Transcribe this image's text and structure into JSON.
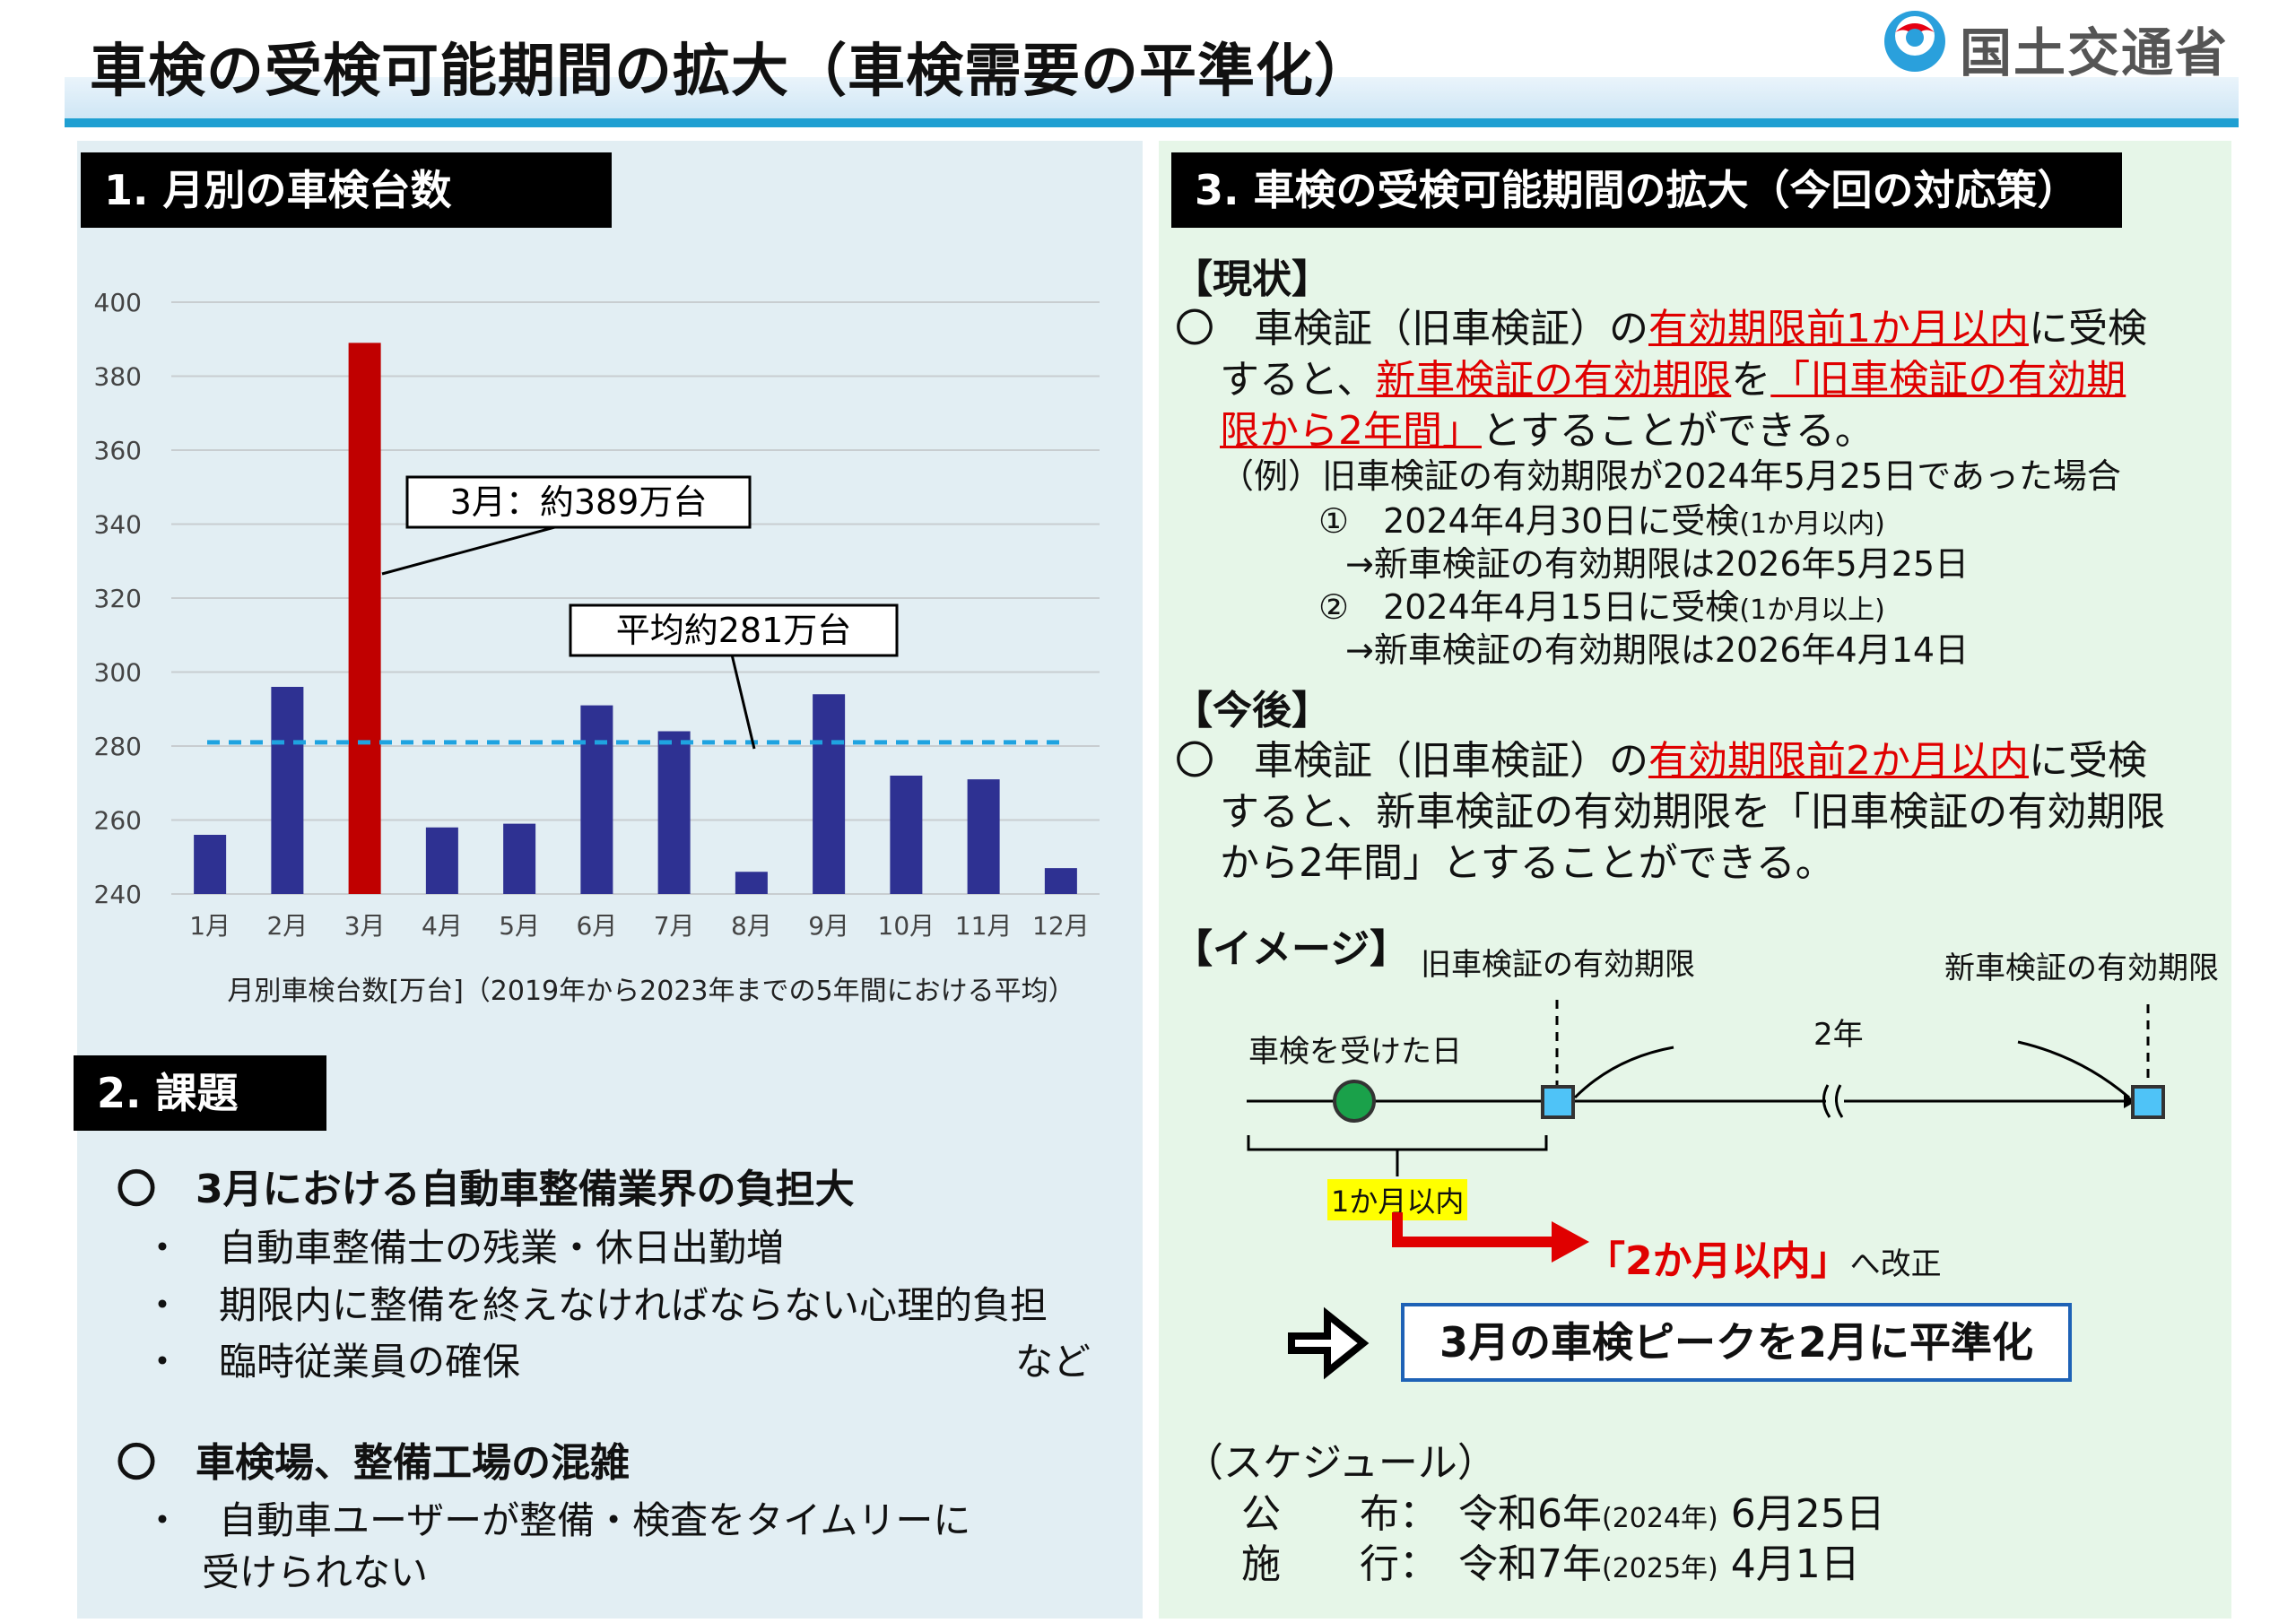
{
  "title": "車検の受検可能期間の拡大（車検需要の平準化）",
  "logo": {
    "text": "国土交通省",
    "icon": "mlit-logo-icon"
  },
  "section1": {
    "heading": "1. 月別の車検台数",
    "chart_data": {
      "type": "bar",
      "categories": [
        "1月",
        "2月",
        "3月",
        "4月",
        "5月",
        "6月",
        "7月",
        "8月",
        "9月",
        "10月",
        "11月",
        "12月"
      ],
      "values": [
        256,
        296,
        389,
        258,
        259,
        291,
        284,
        246,
        294,
        272,
        271,
        247
      ],
      "highlight_index": 2,
      "highlight_color": "#c00000",
      "bar_color": "#2e3192",
      "average_line": 281,
      "average_color": "#1fa3e0",
      "ylim": [
        240,
        400
      ],
      "yticks": [
        240,
        260,
        280,
        300,
        320,
        340,
        360,
        380,
        400
      ],
      "grid": true,
      "caption": "月別車検台数[万台]（2019年から2023年までの5年間における平均）",
      "annotations": [
        {
          "text": "3月：約389万台"
        },
        {
          "text": "平均約281万台"
        }
      ]
    }
  },
  "section2": {
    "heading": "2. 課題",
    "groups": [
      {
        "title": "〇　3月における自動車整備業界の負担大",
        "items": [
          "・　自動車整備士の残業・休日出勤増",
          "・　期限内に整備を終えなければならない心理的負担",
          "・　臨時従業員の確保"
        ],
        "etc": "など"
      },
      {
        "title": "〇　車検場、整備工場の混雑",
        "items": [
          "・　自動車ユーザーが整備・検査をタイムリーに",
          "受けられない"
        ]
      }
    ]
  },
  "section3": {
    "heading": "3. 車検の受検可能期間の拡大（今回の対応策）",
    "current": {
      "label": "【現状】",
      "line1_a": "〇　車検証（旧車検証）の",
      "line1_red": "有効期限前1か月以内",
      "line1_b": "に受検",
      "line2_a": "すると、",
      "line2_red1": "新車検証の有効期限",
      "line2_b": "を",
      "line2_red2": "「旧車検証の有効期",
      "line3_red": "限から2年間」",
      "line3_b": "とすることができる。",
      "example": "（例）旧車検証の有効期限が2024年5月25日であった場合",
      "ex1_a": "①　2024年4月30日に受検",
      "ex1_small": "(1か月以内)",
      "ex1_result": "→新車検証の有効期限は2026年5月25日",
      "ex2_a": "②　2024年4月15日に受検",
      "ex2_small": "(1か月以上)",
      "ex2_result": "→新車検証の有効期限は2026年4月14日"
    },
    "future": {
      "label": "【今後】",
      "line1_a": "〇　車検証（旧車検証）の",
      "line1_red": "有効期限前2か月以内",
      "line1_b": "に受検",
      "line2": "すると、新車検証の有効期限を「旧車検証の有効期限",
      "line3": "から2年間」とすることができる。"
    },
    "image": {
      "label": "【イメージ】",
      "old_expiry": "旧車検証の有効期限",
      "new_expiry": "新車検証の有効期限",
      "inspection_day": "車検を受けた日",
      "two_years": "2年",
      "within_1m": "1か月以内",
      "revised_red": "「2か月以内」",
      "revised_suffix": "へ改正",
      "result": "3月の車検ピークを2月に平準化"
    },
    "schedule": {
      "label": "（スケジュール）",
      "rows": [
        {
          "key": "公　　布：",
          "a": "令和6年",
          "small": "(2024年)",
          "b": " 6月25日"
        },
        {
          "key": "施　　行：",
          "a": "令和7年",
          "small": "(2025年)",
          "b": " 4月1日"
        }
      ]
    }
  }
}
